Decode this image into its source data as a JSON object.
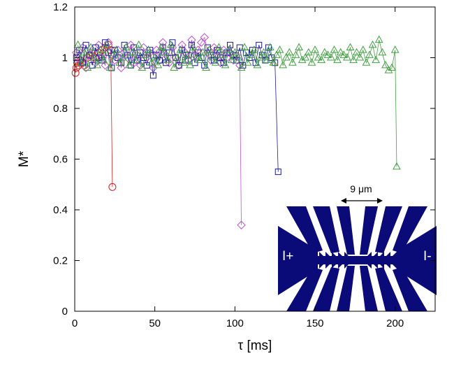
{
  "chart_data": {
    "type": "scatter",
    "title": "",
    "xlabel": "τ [ms]",
    "ylabel": "M*",
    "xlim": [
      0,
      225
    ],
    "ylim": [
      0,
      1.2
    ],
    "x_ticks": [
      0,
      50,
      100,
      150,
      200
    ],
    "y_ticks": [
      0,
      0.2,
      0.4,
      0.6,
      0.8,
      1,
      1.2
    ],
    "x_tick_labels": [
      "0",
      "50",
      "100",
      "150",
      "200"
    ],
    "y_tick_labels": [
      "0",
      "0.2",
      "0.4",
      "0.6",
      "0.8",
      "1",
      "1.2"
    ],
    "grid": false,
    "series": [
      {
        "marker": "circle",
        "color": "#d62020",
        "x": [
          0.5,
          1.0,
          1.5,
          2.5,
          3.5,
          4.5,
          6.0,
          8.0,
          10.0,
          12.5,
          15.0,
          17.0,
          19.0,
          21.0,
          22.5,
          23.5
        ],
        "y": [
          0.94,
          0.96,
          0.98,
          0.97,
          0.99,
          0.98,
          0.97,
          1.0,
          1.01,
          1.0,
          1.02,
          1.03,
          1.04,
          1.05,
          1.03,
          0.49
        ]
      },
      {
        "marker": "diamond",
        "color": "#c050d0",
        "x": [
          1,
          3,
          5,
          7,
          9,
          11,
          13,
          15,
          17,
          19,
          21,
          23,
          25,
          27,
          29,
          31,
          33,
          35,
          37,
          39,
          41,
          43,
          45,
          47,
          49,
          51,
          53,
          55,
          57,
          59,
          61,
          63,
          65,
          67,
          69,
          71,
          73,
          75,
          77,
          79,
          81,
          83,
          85,
          87,
          89,
          91,
          93,
          95,
          97,
          99,
          101,
          103,
          104
        ],
        "y": [
          1.02,
          0.99,
          1.04,
          0.96,
          1.01,
          1.03,
          0.98,
          1.05,
          1.0,
          0.97,
          1.06,
          1.01,
          0.99,
          1.03,
          0.96,
          1.02,
          1.0,
          1.05,
          0.98,
          1.01,
          0.97,
          1.04,
          1.0,
          1.02,
          0.96,
          1.03,
          0.99,
          1.06,
          1.01,
          0.98,
          1.04,
          1.0,
          0.97,
          1.05,
          1.02,
          0.99,
          1.07,
          1.01,
          1.03,
          1.06,
          1.08,
          1.02,
          0.99,
          1.04,
          1.01,
          0.98,
          1.03,
          1.0,
          1.02,
          0.99,
          1.01,
          0.97,
          0.34
        ]
      },
      {
        "marker": "square",
        "color": "#1a1a9c",
        "x": [
          1,
          3,
          5,
          7,
          9,
          11,
          13,
          15,
          17,
          19,
          21,
          23,
          25,
          27,
          29,
          31,
          33,
          35,
          37,
          39,
          41,
          43,
          45,
          47,
          49,
          51,
          53,
          55,
          57,
          59,
          61,
          63,
          65,
          67,
          69,
          71,
          73,
          75,
          77,
          79,
          81,
          83,
          85,
          87,
          89,
          91,
          93,
          95,
          97,
          99,
          101,
          103,
          105,
          107,
          109,
          111,
          113,
          115,
          117,
          119,
          121,
          123,
          125,
          127
        ],
        "y": [
          1.0,
          1.03,
          0.98,
          1.05,
          1.01,
          0.97,
          1.04,
          1.0,
          0.99,
          1.06,
          1.02,
          0.96,
          1.03,
          1.0,
          0.98,
          1.05,
          1.01,
          0.97,
          1.04,
          0.99,
          1.02,
          1.0,
          0.97,
          1.03,
          0.93,
          1.01,
          0.99,
          1.04,
          0.98,
          1.02,
          1.06,
          1.0,
          0.97,
          1.03,
          0.99,
          1.01,
          1.05,
          0.98,
          1.02,
          1.0,
          0.97,
          1.04,
          1.01,
          0.99,
          1.03,
          1.0,
          0.98,
          1.02,
          1.05,
          1.01,
          0.99,
          1.04,
          0.97,
          1.02,
          1.0,
          1.03,
          0.98,
          1.05,
          1.01,
          0.99,
          1.04,
          1.0,
          0.98,
          0.55
        ]
      },
      {
        "marker": "triangle",
        "color": "#40a040",
        "x": [
          2,
          4,
          6,
          8,
          10,
          12,
          14,
          16,
          18,
          20,
          22,
          24,
          26,
          28,
          30,
          32,
          34,
          36,
          38,
          40,
          42,
          44,
          46,
          48,
          50,
          52,
          54,
          56,
          58,
          60,
          62,
          64,
          66,
          68,
          70,
          72,
          74,
          76,
          78,
          80,
          82,
          84,
          86,
          88,
          90,
          92,
          94,
          96,
          98,
          100,
          102,
          104,
          106,
          108,
          110,
          112,
          114,
          116,
          118,
          120,
          122,
          124,
          126,
          128,
          130,
          132,
          134,
          136,
          138,
          140,
          142,
          144,
          146,
          148,
          150,
          152,
          154,
          156,
          158,
          160,
          162,
          164,
          166,
          168,
          170,
          172,
          174,
          176,
          178,
          180,
          182,
          184,
          186,
          188,
          190,
          192,
          194,
          196,
          198,
          200,
          201
        ],
        "y": [
          1.05,
          0.98,
          1.02,
          0.96,
          1.04,
          1.0,
          0.97,
          1.03,
          0.99,
          1.05,
          0.96,
          1.01,
          1.03,
          0.98,
          1.0,
          1.04,
          0.97,
          1.02,
          0.99,
          1.05,
          0.96,
          1.01,
          1.03,
          0.98,
          1.0,
          0.97,
          1.04,
          1.02,
          0.99,
          1.05,
          0.96,
          1.0,
          1.03,
          0.98,
          1.01,
          0.97,
          1.04,
          1.0,
          0.99,
          1.02,
          0.96,
          1.03,
          1.0,
          0.98,
          1.04,
          1.01,
          0.97,
          1.03,
          0.99,
          1.02,
          1.0,
          0.96,
          1.04,
          0.98,
          1.01,
          1.03,
          0.97,
          1.0,
          1.02,
          0.99,
          1.04,
          0.98,
          1.01,
          1.03,
          0.97,
          1.0,
          1.02,
          0.98,
          1.01,
          1.04,
          0.99,
          1.0,
          1.02,
          0.98,
          1.03,
          1.0,
          0.99,
          1.02,
          1.01,
          1.0,
          1.03,
          0.99,
          1.02,
          1.01,
          1.0,
          1.04,
          0.99,
          1.02,
          1.0,
          1.03,
          0.98,
          1.01,
          1.05,
          0.99,
          1.07,
          1.02,
          0.97,
          0.95,
          0.96,
          1.03,
          0.57
        ]
      }
    ]
  },
  "inset": {
    "label_left": "I+",
    "label_right": "I-",
    "scale_label": "9 μm",
    "fill_color": "#0a0a78"
  }
}
